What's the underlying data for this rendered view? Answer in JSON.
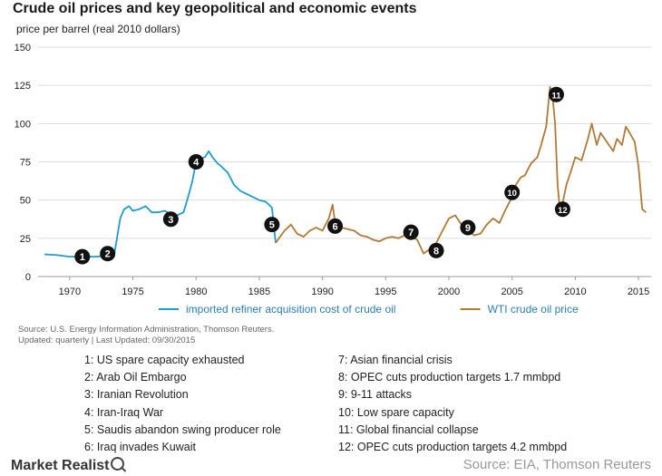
{
  "title": "Crude oil prices and key geopolitical and economic events",
  "source": "Source: U.S. Energy Information Administration, Thomson Reuters.",
  "updated": "Updated: quarterly | Last Updated: 09/30/2015",
  "footer": {
    "brand": "Market Realist",
    "brand_icon": "magnifier-icon",
    "source": "Source: EIA, Thomson Reuters"
  },
  "events_left": [
    "1: US spare capacity exhausted",
    "2: Arab Oil Embargo",
    "3: Iranian Revolution",
    "4: Iran-Iraq War",
    "5: Saudis abandon swing producer role",
    "6: Iraq invades Kuwait"
  ],
  "events_right": [
    "7: Asian financial crisis",
    "8: OPEC cuts production targets 1.7 mmbpd",
    "9: 9-11 attacks",
    "10: Low spare capacity",
    "11: Global financial collapse",
    "12: OPEC cuts production targets 4.2 mmbpd"
  ],
  "chart_data": {
    "type": "line",
    "ylabel": "price per barrel (real 2010 dollars)",
    "xlim": [
      1967.5,
      2016
    ],
    "ylim": [
      0,
      150
    ],
    "xticks": [
      1970,
      1975,
      1980,
      1985,
      1990,
      1995,
      2000,
      2005,
      2010,
      2015
    ],
    "yticks": [
      0,
      25,
      50,
      75,
      100,
      125,
      150
    ],
    "grid": "horizontal",
    "legend_position": "bottom",
    "series": [
      {
        "name": "imported refiner acquisition cost of crude oil",
        "color": "#1f9bcf",
        "x": [
          1968,
          1969,
          1970,
          1971,
          1972,
          1973,
          1973.5,
          1974,
          1974.3,
          1974.7,
          1975,
          1975.5,
          1976,
          1976.5,
          1977,
          1977.5,
          1978,
          1978.5,
          1979,
          1979.3,
          1979.7,
          1980,
          1980.3,
          1980.7,
          1981,
          1981.3,
          1981.7,
          1982,
          1982.5,
          1983,
          1983.5,
          1984,
          1984.5,
          1985,
          1985.5,
          1986,
          1986.3
        ],
        "y": [
          14.5,
          14,
          13,
          13,
          13,
          13.5,
          13,
          38,
          44,
          46,
          43,
          44,
          46,
          42,
          42,
          43,
          41,
          40,
          42,
          50,
          62,
          75,
          77,
          78,
          82,
          78,
          74,
          72,
          68,
          60,
          56,
          54,
          52,
          50,
          49,
          45,
          22
        ]
      },
      {
        "name": "WTI crude oil price",
        "color": "#b07a35",
        "x": [
          1986.3,
          1987,
          1987.5,
          1988,
          1988.5,
          1989,
          1989.5,
          1990,
          1990.5,
          1990.8,
          1991,
          1991.5,
          1992,
          1992.5,
          1993,
          1993.5,
          1994,
          1994.5,
          1995,
          1995.5,
          1996,
          1996.5,
          1997,
          1997.5,
          1998,
          1998.5,
          1999,
          1999.5,
          2000,
          2000.5,
          2001,
          2001.5,
          2002,
          2002.5,
          2003,
          2003.5,
          2004,
          2004.5,
          2005,
          2005.3,
          2005.7,
          2006,
          2006.5,
          2007,
          2007.3,
          2007.7,
          2008,
          2008.2,
          2008.4,
          2008.6,
          2008.8,
          2009,
          2009.3,
          2009.7,
          2010,
          2010.5,
          2011,
          2011.3,
          2011.7,
          2012,
          2012.5,
          2013,
          2013.3,
          2013.7,
          2014,
          2014.3,
          2014.7,
          2015,
          2015.3,
          2015.6
        ],
        "y": [
          22,
          30,
          34,
          28,
          26,
          30,
          32,
          30,
          38,
          47,
          35,
          32,
          31,
          30,
          27,
          26,
          24,
          23,
          25,
          26,
          25,
          27,
          26,
          24,
          15,
          18,
          22,
          30,
          38,
          40,
          34,
          30,
          27,
          28,
          34,
          38,
          35,
          44,
          52,
          60,
          65,
          66,
          74,
          78,
          86,
          98,
          124,
          118,
          100,
          60,
          42,
          48,
          60,
          70,
          78,
          76,
          90,
          100,
          86,
          94,
          88,
          82,
          90,
          86,
          98,
          94,
          88,
          72,
          44,
          42
        ]
      }
    ],
    "annotations": [
      {
        "label": "1",
        "x": 1971,
        "y": 13
      },
      {
        "label": "2",
        "x": 1973,
        "y": 15
      },
      {
        "label": "3",
        "x": 1978,
        "y": 37.5
      },
      {
        "label": "4",
        "x": 1980,
        "y": 75
      },
      {
        "label": "5",
        "x": 1986,
        "y": 34
      },
      {
        "label": "6",
        "x": 1991,
        "y": 33
      },
      {
        "label": "7",
        "x": 1997,
        "y": 29
      },
      {
        "label": "8",
        "x": 1999,
        "y": 17
      },
      {
        "label": "9",
        "x": 2001.5,
        "y": 32
      },
      {
        "label": "10",
        "x": 2005,
        "y": 55
      },
      {
        "label": "11",
        "x": 2008.5,
        "y": 119
      },
      {
        "label": "12",
        "x": 2009,
        "y": 44
      }
    ]
  }
}
